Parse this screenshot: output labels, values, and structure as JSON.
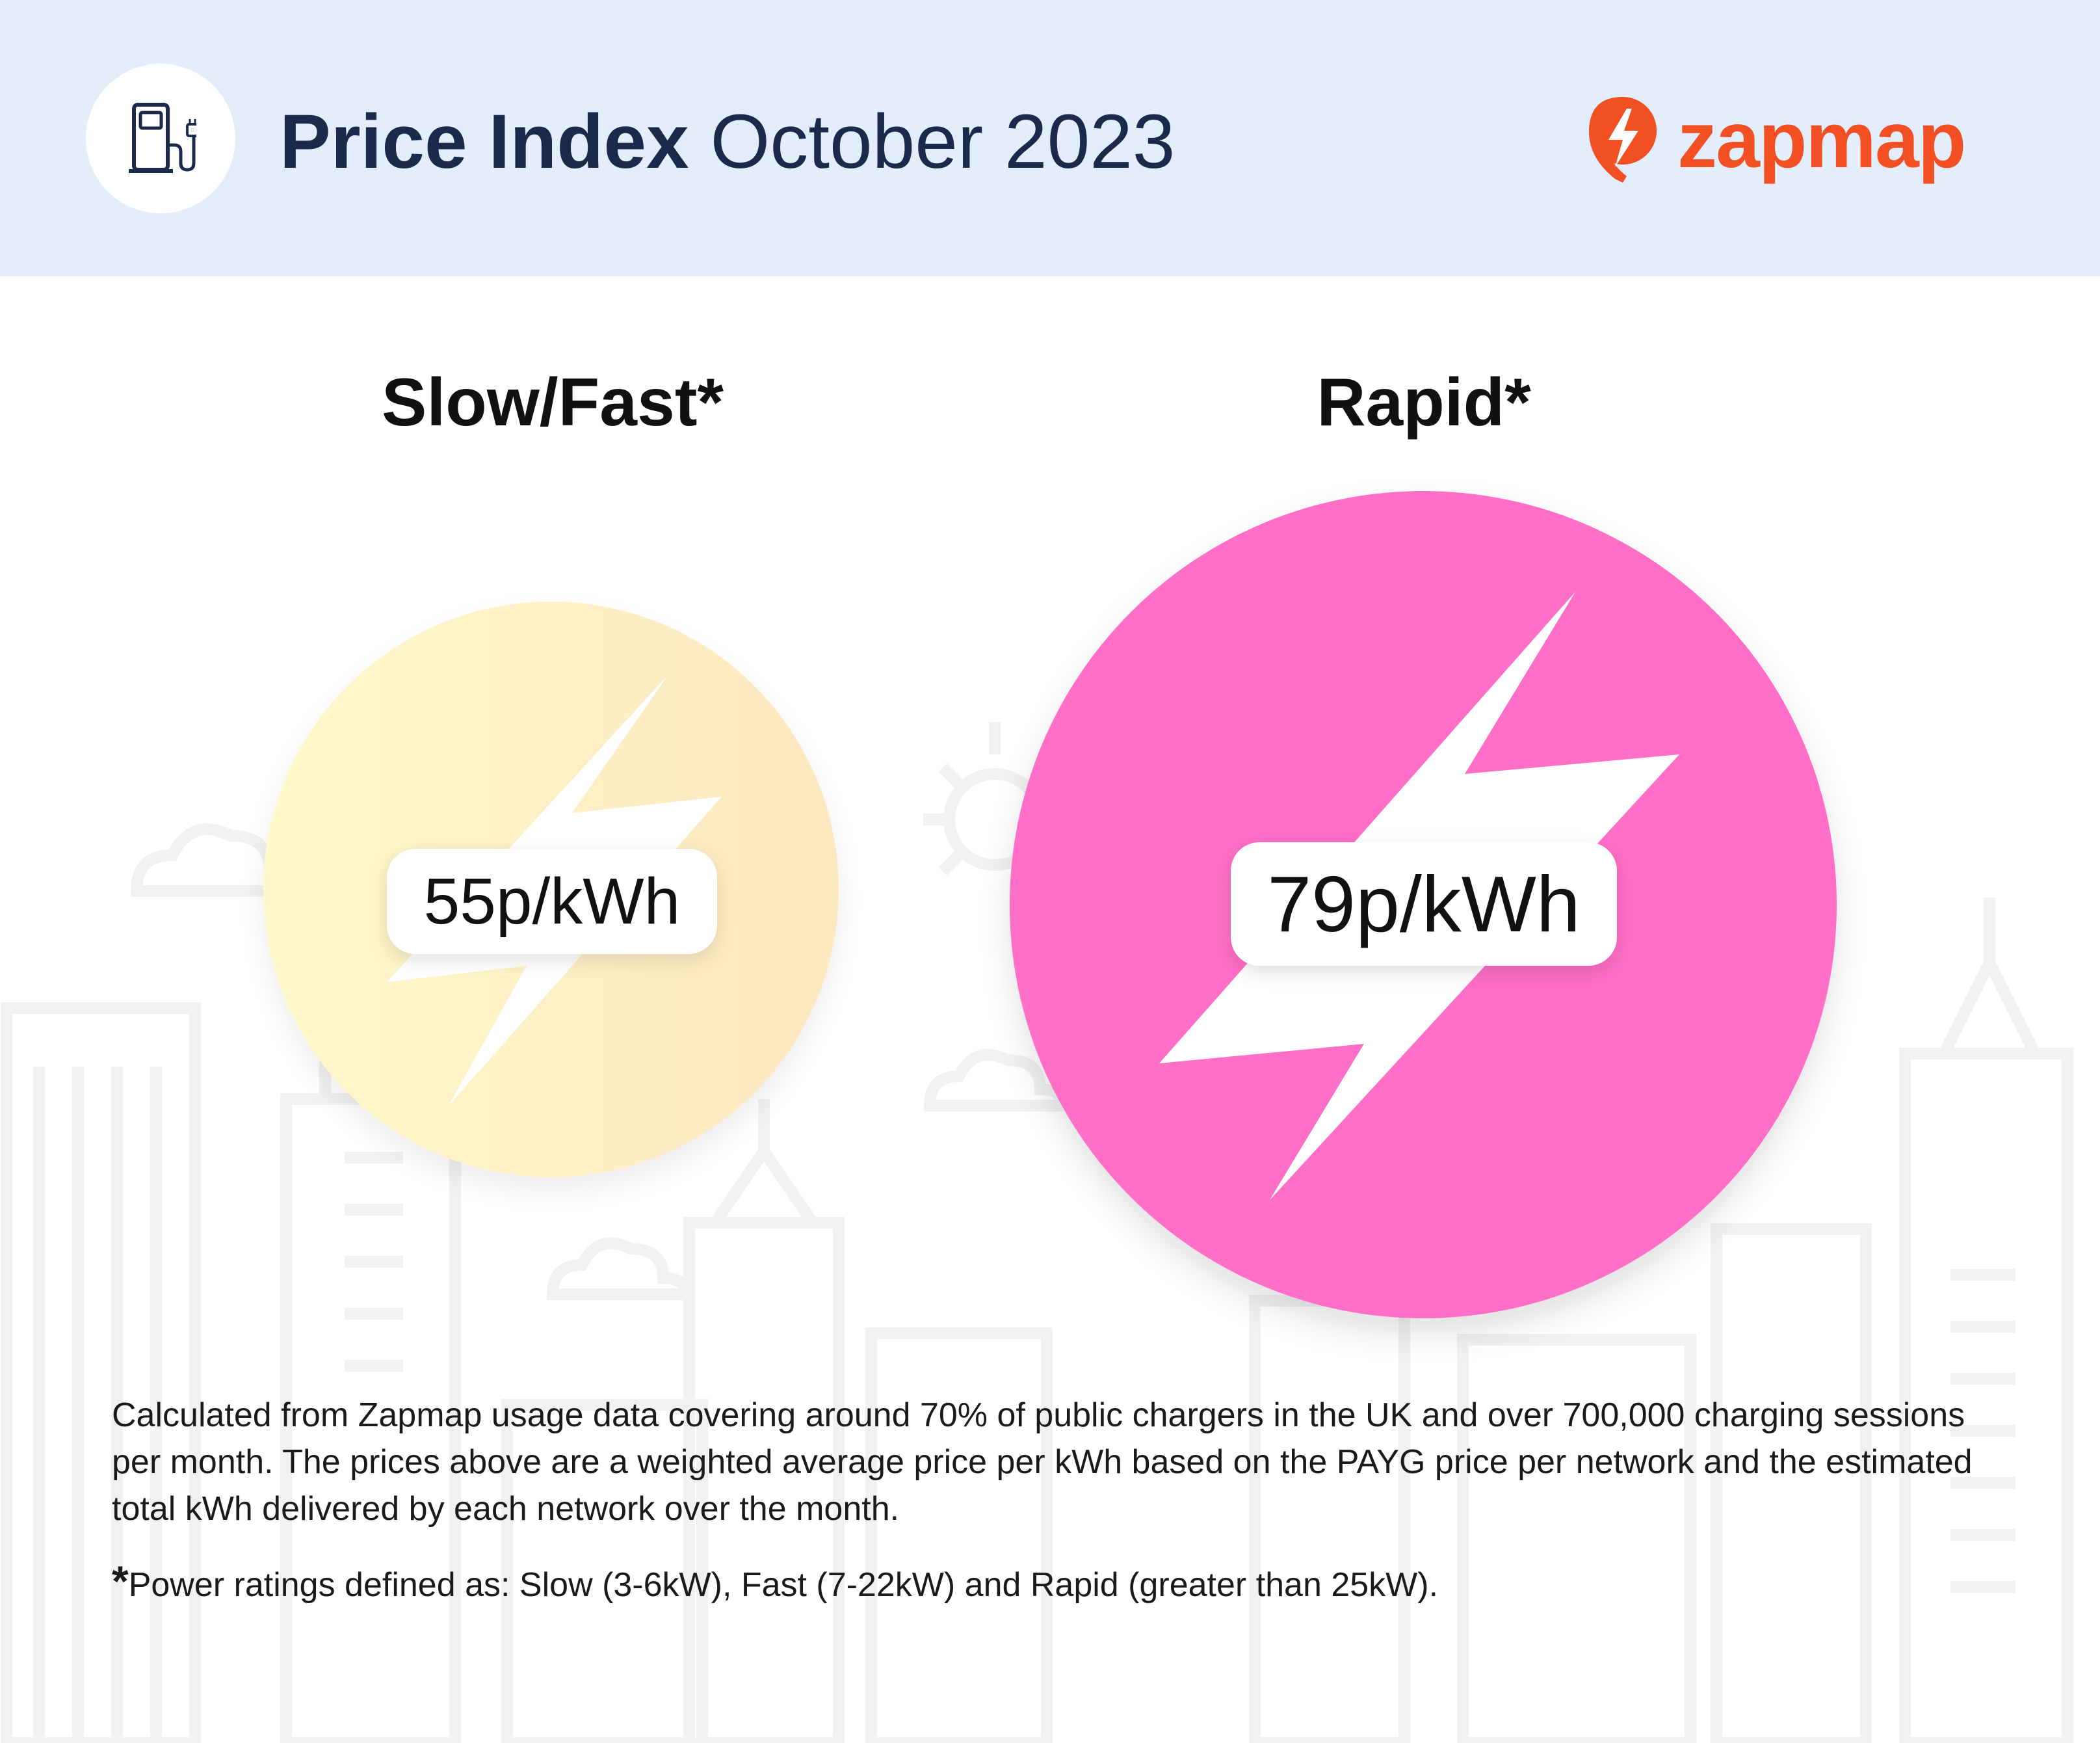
{
  "header": {
    "title_bold": "Price Index",
    "title_rest": "October 2023",
    "brand_name": "zapmap",
    "brand_color": "#f24f23",
    "icon": "ev-charger-icon"
  },
  "categories": [
    {
      "label": "Slow/Fast*",
      "price": "55p/kWh",
      "color": "#fdeec6"
    },
    {
      "label": "Rapid*",
      "price": "79p/kWh",
      "color": "#ff6ec7"
    }
  ],
  "footnote": {
    "text": "Calculated from Zapmap usage data covering around 70% of public chargers in the UK and over 700,000 charging sessions per month. The prices above are a weighted average price per kWh based on the PAYG price per network and the estimated total kWh delivered by each network over the month.",
    "asterisk": "*",
    "definition": "Power ratings defined as: Slow (3-6kW), Fast (7-22kW) and Rapid (greater than 25kW)."
  }
}
